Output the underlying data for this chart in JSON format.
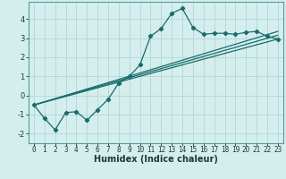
{
  "xlabel": "Humidex (Indice chaleur)",
  "bg_color": "#d4eeee",
  "grid_color": "#b8d8d8",
  "line_color": "#1a6b6b",
  "xlim": [
    -0.5,
    23.5
  ],
  "ylim": [
    -2.5,
    4.9
  ],
  "xticks": [
    0,
    1,
    2,
    3,
    4,
    5,
    6,
    7,
    8,
    9,
    10,
    11,
    12,
    13,
    14,
    15,
    16,
    17,
    18,
    19,
    20,
    21,
    22,
    23
  ],
  "yticks": [
    -2,
    -1,
    0,
    1,
    2,
    3,
    4
  ],
  "curve1_x": [
    0,
    1,
    2,
    3,
    4,
    5,
    6,
    7,
    8,
    9,
    10,
    11,
    12,
    13,
    14,
    15,
    16,
    17,
    18,
    19,
    20,
    21,
    22,
    23
  ],
  "curve1_y": [
    -0.5,
    -1.2,
    -1.8,
    -0.9,
    -0.85,
    -1.3,
    -0.75,
    -0.2,
    0.65,
    1.0,
    1.6,
    3.1,
    3.5,
    4.3,
    4.55,
    3.55,
    3.2,
    3.25,
    3.25,
    3.2,
    3.3,
    3.35,
    3.1,
    2.95
  ],
  "line2_x": [
    0,
    23
  ],
  "line2_y": [
    -0.5,
    3.35
  ],
  "line3_x": [
    0,
    23
  ],
  "line3_y": [
    -0.5,
    2.95
  ],
  "line4_x": [
    0,
    23
  ],
  "line4_y": [
    -0.5,
    3.15
  ],
  "xlabel_fontsize": 7,
  "tick_fontsize": 5.5
}
